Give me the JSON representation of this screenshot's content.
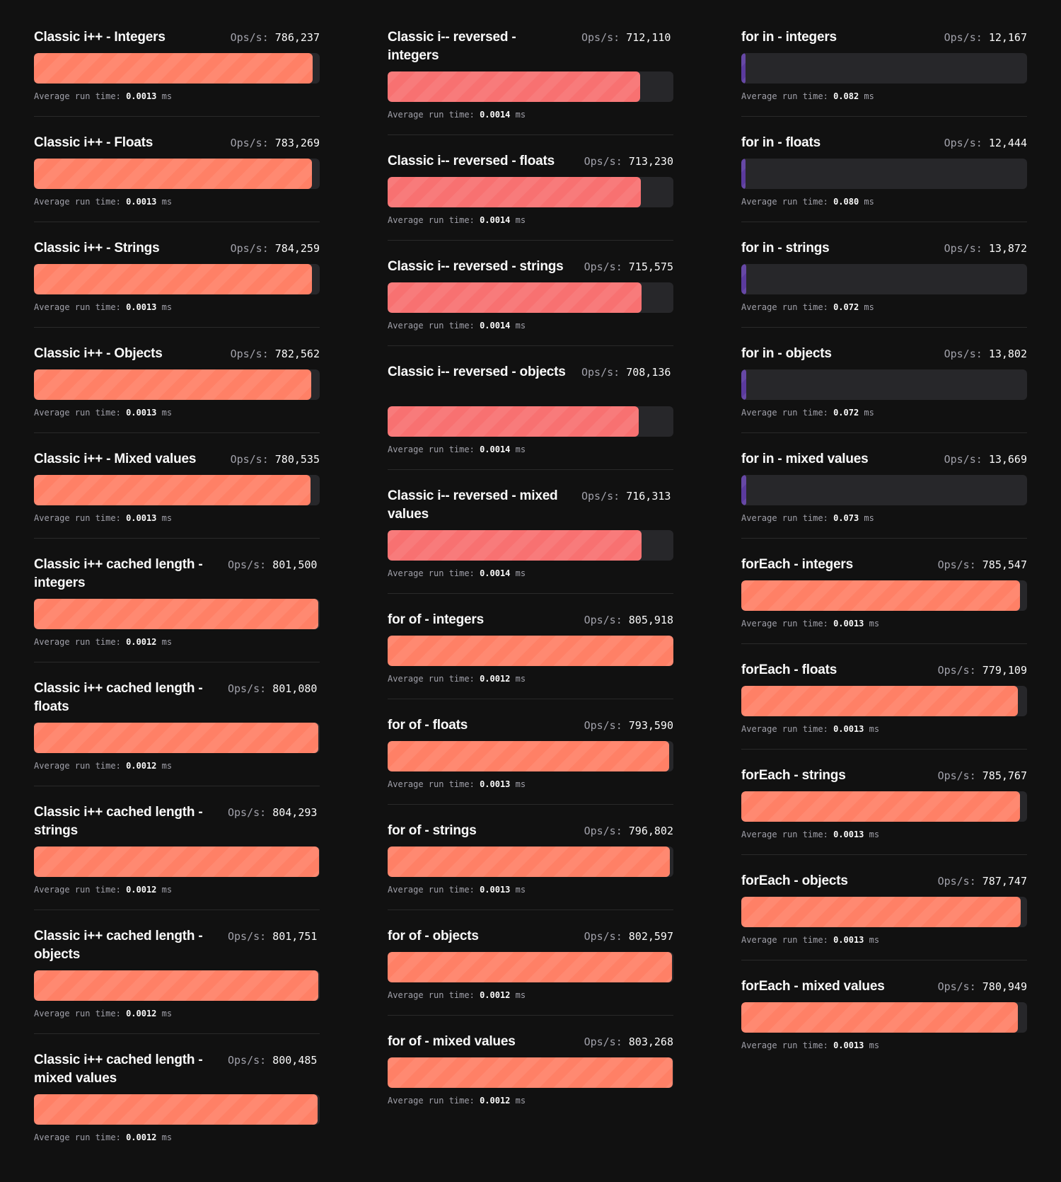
{
  "labels": {
    "ops": "Ops/s:",
    "avg": "Average run time:",
    "unit": "ms"
  },
  "colors": {
    "background": "#111111",
    "track": "#27272a",
    "orange": "#ff8066",
    "red": "#f87171",
    "purple": "#5b3a9e"
  },
  "max_ops": 805918,
  "columns": [
    [
      {
        "title": "Classic i++ - Integers",
        "ops": "786,237",
        "avg": "0.0013",
        "color": "orange"
      },
      {
        "title": "Classic i++ - Floats",
        "ops": "783,269",
        "avg": "0.0013",
        "color": "orange"
      },
      {
        "title": "Classic i++ - Strings",
        "ops": "784,259",
        "avg": "0.0013",
        "color": "orange"
      },
      {
        "title": "Classic i++ - Objects",
        "ops": "782,562",
        "avg": "0.0013",
        "color": "orange"
      },
      {
        "title": "Classic i++ - Mixed values",
        "ops": "780,535",
        "avg": "0.0013",
        "color": "orange"
      },
      {
        "title": "Classic i++ cached length - integers",
        "ops": "801,500",
        "avg": "0.0012",
        "color": "orange"
      },
      {
        "title": "Classic i++ cached length - floats",
        "ops": "801,080",
        "avg": "0.0012",
        "color": "orange"
      },
      {
        "title": "Classic i++ cached length - strings",
        "ops": "804,293",
        "avg": "0.0012",
        "color": "orange"
      },
      {
        "title": "Classic i++ cached length - objects",
        "ops": "801,751",
        "avg": "0.0012",
        "color": "orange"
      },
      {
        "title": "Classic i++ cached length - mixed values",
        "ops": "800,485",
        "avg": "0.0012",
        "color": "orange"
      }
    ],
    [
      {
        "title": "Classic i-- reversed - integers",
        "ops": "712,110",
        "avg": "0.0014",
        "color": "red"
      },
      {
        "title": "Classic i-- reversed - floats",
        "ops": "713,230",
        "avg": "0.0014",
        "color": "red"
      },
      {
        "title": "Classic i-- reversed - strings",
        "ops": "715,575",
        "avg": "0.0014",
        "color": "red"
      },
      {
        "title": "Classic i-- reversed - objects",
        "ops": "708,136",
        "avg": "0.0014",
        "color": "red"
      },
      {
        "title": "Classic i-- reversed - mixed values",
        "ops": "716,313",
        "avg": "0.0014",
        "color": "red"
      },
      {
        "title": "for of - integers",
        "ops": "805,918",
        "avg": "0.0012",
        "color": "orange"
      },
      {
        "title": "for of - floats",
        "ops": "793,590",
        "avg": "0.0013",
        "color": "orange"
      },
      {
        "title": "for of - strings",
        "ops": "796,802",
        "avg": "0.0013",
        "color": "orange"
      },
      {
        "title": "for of - objects",
        "ops": "802,597",
        "avg": "0.0012",
        "color": "orange"
      },
      {
        "title": "for of - mixed values",
        "ops": "803,268",
        "avg": "0.0012",
        "color": "orange"
      }
    ],
    [
      {
        "title": "for in - integers",
        "ops": "12,167",
        "avg": "0.082",
        "color": "purple"
      },
      {
        "title": "for in - floats",
        "ops": "12,444",
        "avg": "0.080",
        "color": "purple"
      },
      {
        "title": "for in - strings",
        "ops": "13,872",
        "avg": "0.072",
        "color": "purple"
      },
      {
        "title": "for in - objects",
        "ops": "13,802",
        "avg": "0.072",
        "color": "purple"
      },
      {
        "title": "for in - mixed values",
        "ops": "13,669",
        "avg": "0.073",
        "color": "purple"
      },
      {
        "title": "forEach - integers",
        "ops": "785,547",
        "avg": "0.0013",
        "color": "orange"
      },
      {
        "title": "forEach - floats",
        "ops": "779,109",
        "avg": "0.0013",
        "color": "orange"
      },
      {
        "title": "forEach - strings",
        "ops": "785,767",
        "avg": "0.0013",
        "color": "orange"
      },
      {
        "title": "forEach - objects",
        "ops": "787,747",
        "avg": "0.0013",
        "color": "orange"
      },
      {
        "title": "forEach - mixed values",
        "ops": "780,949",
        "avg": "0.0013",
        "color": "orange"
      }
    ]
  ]
}
